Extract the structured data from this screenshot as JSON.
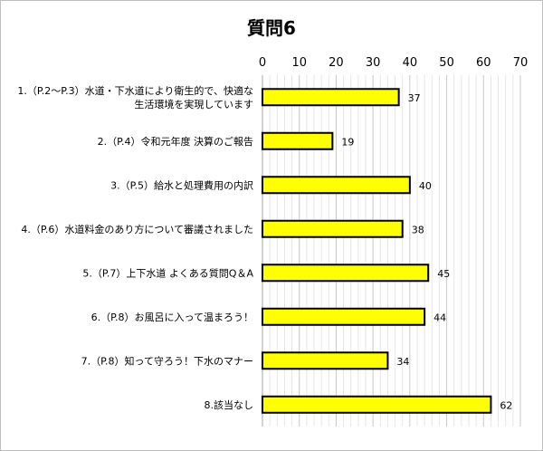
{
  "chart_data": {
    "type": "bar",
    "orientation": "horizontal",
    "title": "質問6",
    "categories": [
      [
        "1.（P.2～P.3）水道・下水道により衛生的で、快適な",
        "生活環境を実現しています"
      ],
      [
        "2.（P.4）令和元年度 決算のご報告"
      ],
      [
        "3.（P.5）給水と処理費用の内訳"
      ],
      [
        "4.（P.6）水道料金のあり方について審議されました"
      ],
      [
        "5.（P.7）上下水道 よくある質問Q＆A"
      ],
      [
        "6.（P.8）お風呂に入って温まろう！"
      ],
      [
        "7.（P.8）知って守ろう！下水のマナー"
      ],
      [
        "8.該当なし"
      ]
    ],
    "values": [
      37,
      19,
      40,
      38,
      45,
      44,
      34,
      62
    ],
    "xlim": [
      0,
      70
    ],
    "x_ticks": [
      0,
      10,
      20,
      30,
      40,
      50,
      60,
      70
    ],
    "x_axis_position": "top",
    "data_labels": true,
    "grid": true,
    "bar_color": "#ffff00",
    "bar_edge_color": "#000000",
    "grid_color": "#d9d9d9"
  }
}
